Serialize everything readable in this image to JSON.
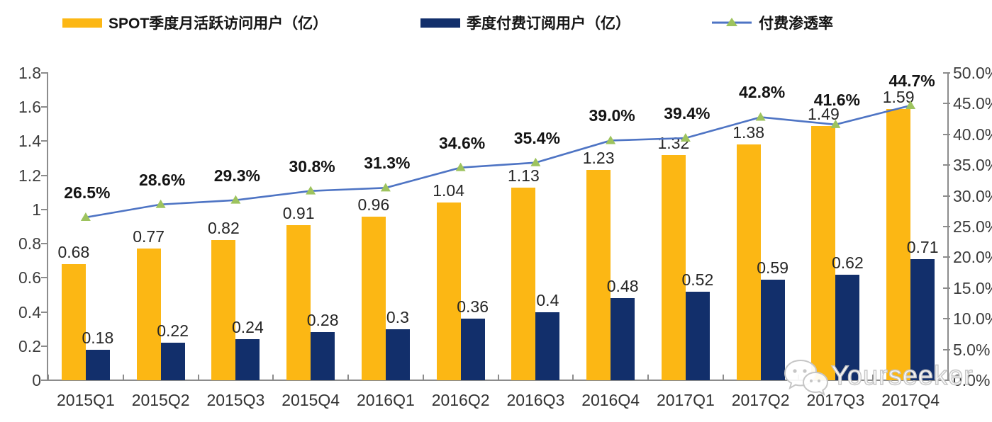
{
  "legend": [
    {
      "label": "SPOT季度月活跃访问用户（亿）",
      "type": "bar",
      "color": "#FCB714"
    },
    {
      "label": "季度付费订阅用户（亿）",
      "type": "bar",
      "color": "#122F6B"
    },
    {
      "label": "付费渗透率",
      "type": "line",
      "color": "#4E74C4",
      "marker_color": "#9DC35E"
    }
  ],
  "chart_data": {
    "type": "combo_bar_line",
    "categories": [
      "2015Q1",
      "2015Q2",
      "2015Q3",
      "2015Q4",
      "2016Q1",
      "2016Q2",
      "2016Q3",
      "2016Q4",
      "2017Q1",
      "2017Q2",
      "2017Q3",
      "2017Q4"
    ],
    "series": [
      {
        "name": "SPOT季度月活跃访问用户（亿）",
        "type": "bar",
        "axis": "left",
        "color": "#FCB714",
        "values": [
          0.68,
          0.77,
          0.82,
          0.91,
          0.96,
          1.04,
          1.13,
          1.23,
          1.32,
          1.38,
          1.49,
          1.59
        ],
        "labels": [
          "0.68",
          "0.77",
          "0.82",
          "0.91",
          "0.96",
          "1.04",
          "1.13",
          "1.23",
          "1.32",
          "1.38",
          "1.49",
          "1.59"
        ]
      },
      {
        "name": "季度付费订阅用户（亿）",
        "type": "bar",
        "axis": "left",
        "color": "#122F6B",
        "values": [
          0.18,
          0.22,
          0.24,
          0.28,
          0.3,
          0.36,
          0.4,
          0.48,
          0.52,
          0.59,
          0.62,
          0.71
        ],
        "labels": [
          "0.18",
          "0.22",
          "0.24",
          "0.28",
          "0.3",
          "0.36",
          "0.4",
          "0.48",
          "0.52",
          "0.59",
          "0.62",
          "0.71"
        ]
      },
      {
        "name": "付费渗透率",
        "type": "line",
        "axis": "right",
        "color": "#4E74C4",
        "marker_color": "#9DC35E",
        "values": [
          26.5,
          28.6,
          29.3,
          30.8,
          31.3,
          34.6,
          35.4,
          39.0,
          39.4,
          42.8,
          41.6,
          44.7
        ],
        "labels": [
          "26.5%",
          "28.6%",
          "29.3%",
          "30.8%",
          "31.3%",
          "34.6%",
          "35.4%",
          "39.0%",
          "39.4%",
          "42.8%",
          "41.6%",
          "44.7%"
        ]
      }
    ],
    "left_axis": {
      "min": 0,
      "max": 1.8,
      "tick_labels": [
        "0",
        "0.2",
        "0.4",
        "0.6",
        "0.8",
        "1",
        "1.2",
        "1.4",
        "1.6",
        "1.8"
      ]
    },
    "right_axis": {
      "min": 0,
      "max": 50,
      "tick_labels": [
        "0.0%",
        "5.0%",
        "10.0%",
        "15.0%",
        "20.0%",
        "25.0%",
        "30.0%",
        "35.0%",
        "40.0%",
        "45.0%",
        "50.0%"
      ]
    },
    "grid": false,
    "legend_position": "top"
  },
  "watermark": {
    "text": "Yourseeker",
    "icon": "wechat-icon"
  },
  "colors": {
    "axis": "#8C8C8C",
    "label_text": "#262626",
    "tick_text": "#3C3C3C"
  }
}
